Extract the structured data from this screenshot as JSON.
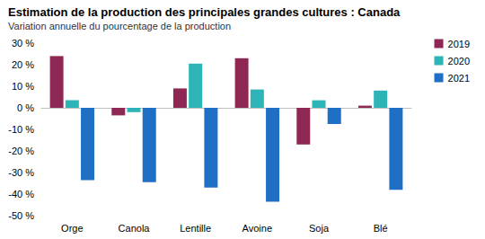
{
  "chart_data": {
    "type": "bar",
    "title": "Estimation de la production des principales grandes cultures : Canada",
    "subtitle": "Variation annuelle du pourcentage de la production",
    "categories": [
      "Orge",
      "Canola",
      "Lentille",
      "Avoine",
      "Soja",
      "Blé"
    ],
    "series": [
      {
        "name": "2019",
        "color": "#8e2753",
        "values": [
          24,
          -3.5,
          9,
          23,
          -17,
          1
        ]
      },
      {
        "name": "2020",
        "color": "#2db4b6",
        "values": [
          3.5,
          -2,
          20.5,
          8.5,
          3.5,
          8
        ]
      },
      {
        "name": "2021",
        "color": "#1f6fc5",
        "values": [
          -33.5,
          -34.5,
          -37,
          -43.5,
          -7.5,
          -38
        ]
      }
    ],
    "ylim": [
      -50,
      30
    ],
    "yticks": [
      {
        "value": -50,
        "label": "-50 %"
      },
      {
        "value": -40,
        "label": "-40 %"
      },
      {
        "value": -30,
        "label": "-30 %"
      },
      {
        "value": -20,
        "label": "-20 %"
      },
      {
        "value": -10,
        "label": "-10 %"
      },
      {
        "value": 0,
        "label": "0 %"
      },
      {
        "value": 10,
        "label": "10 %"
      },
      {
        "value": 20,
        "label": "20 %"
      },
      {
        "value": 30,
        "label": "30 %"
      }
    ],
    "grid": false,
    "legend": "top-right"
  }
}
